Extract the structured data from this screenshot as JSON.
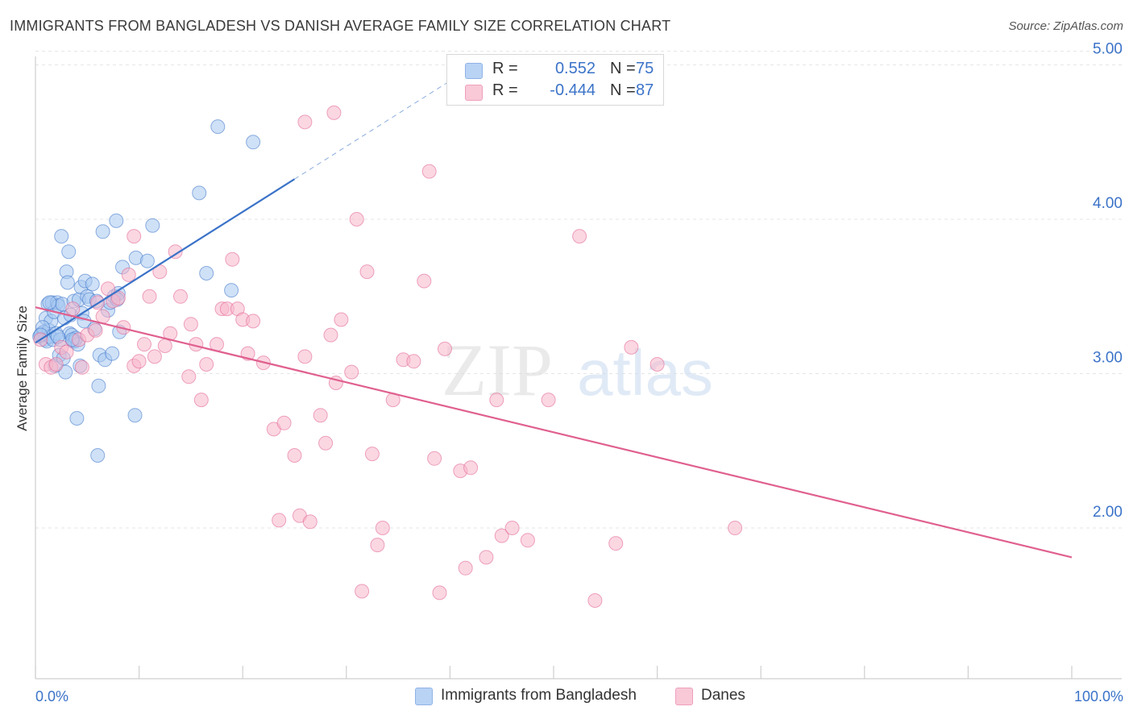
{
  "header": {
    "title": "IMMIGRANTS FROM BANGLADESH VS DANISH AVERAGE FAMILY SIZE CORRELATION CHART",
    "source": "Source: ZipAtlas.com"
  },
  "watermark": {
    "zip": "ZIP",
    "atlas": "atlas"
  },
  "legend": {
    "series1": {
      "r_label": "R =",
      "r_value": "0.552",
      "n_label": "N =",
      "n_value": "75",
      "color": "#a8c8f0"
    },
    "series2": {
      "r_label": "R =",
      "r_value": "-0.444",
      "n_label": "N =",
      "n_value": "87",
      "color": "#f7b7cb"
    }
  },
  "bottom_legend": {
    "series1_label": "Immigrants from Bangladesh",
    "series2_label": "Danes"
  },
  "chart_data": {
    "type": "scatter",
    "title": "IMMIGRANTS FROM BANGLADESH VS DANISH AVERAGE FAMILY SIZE CORRELATION CHART",
    "xlabel": "",
    "ylabel": "Average Family Size",
    "xlim": [
      0,
      100
    ],
    "ylim": [
      1.05,
      5.15
    ],
    "x_tick_labels": [
      "0.0%",
      "100.0%"
    ],
    "y_ticks": [
      2.0,
      3.0,
      4.0,
      5.0
    ],
    "y_tick_labels": [
      "2.00",
      "3.00",
      "4.00",
      "5.00"
    ],
    "grid": "horizontal dashed",
    "series": [
      {
        "name": "Immigrants from Bangladesh",
        "color": "#3b73c8",
        "fill": "#a8c8f0",
        "trend": {
          "x": [
            0,
            25.0
          ],
          "y": [
            3.2,
            4.26
          ],
          "dashed_extension_to_x": 42.0
        },
        "points": [
          [
            0.4,
            3.24
          ],
          [
            0.6,
            3.26
          ],
          [
            0.8,
            3.27
          ],
          [
            0.9,
            3.22
          ],
          [
            1.0,
            3.36
          ],
          [
            1.1,
            3.21
          ],
          [
            1.2,
            3.45
          ],
          [
            1.3,
            3.28
          ],
          [
            1.4,
            3.24
          ],
          [
            1.5,
            3.34
          ],
          [
            1.6,
            3.46
          ],
          [
            1.7,
            3.22
          ],
          [
            1.8,
            3.4
          ],
          [
            1.9,
            3.05
          ],
          [
            2.0,
            3.26
          ],
          [
            2.1,
            3.46
          ],
          [
            2.2,
            3.44
          ],
          [
            2.3,
            3.12
          ],
          [
            2.4,
            3.22
          ],
          [
            2.5,
            3.89
          ],
          [
            2.6,
            3.45
          ],
          [
            2.7,
            3.1
          ],
          [
            2.8,
            3.36
          ],
          [
            2.9,
            3.01
          ],
          [
            3.0,
            3.66
          ],
          [
            3.1,
            3.59
          ],
          [
            3.2,
            3.79
          ],
          [
            3.3,
            3.26
          ],
          [
            3.4,
            3.38
          ],
          [
            3.5,
            3.25
          ],
          [
            3.6,
            3.21
          ],
          [
            3.7,
            3.47
          ],
          [
            3.8,
            3.21
          ],
          [
            3.9,
            3.23
          ],
          [
            4.0,
            2.71
          ],
          [
            4.1,
            3.19
          ],
          [
            4.2,
            3.48
          ],
          [
            4.3,
            3.05
          ],
          [
            4.4,
            3.56
          ],
          [
            4.5,
            3.39
          ],
          [
            4.7,
            3.34
          ],
          [
            4.8,
            3.6
          ],
          [
            5.0,
            3.5
          ],
          [
            5.2,
            3.48
          ],
          [
            5.5,
            3.58
          ],
          [
            5.7,
            3.29
          ],
          [
            6.0,
            2.47
          ],
          [
            6.1,
            2.92
          ],
          [
            6.2,
            3.12
          ],
          [
            6.5,
            3.92
          ],
          [
            6.7,
            3.09
          ],
          [
            7.0,
            3.41
          ],
          [
            7.2,
            3.46
          ],
          [
            7.4,
            3.13
          ],
          [
            7.6,
            3.5
          ],
          [
            7.8,
            3.99
          ],
          [
            8.0,
            3.52
          ],
          [
            8.1,
            3.27
          ],
          [
            8.4,
            3.69
          ],
          [
            9.6,
            2.73
          ],
          [
            9.7,
            3.75
          ],
          [
            10.8,
            3.73
          ],
          [
            11.3,
            3.96
          ],
          [
            15.8,
            4.17
          ],
          [
            16.5,
            3.65
          ],
          [
            17.6,
            4.6
          ],
          [
            18.9,
            3.54
          ],
          [
            21.0,
            4.5
          ],
          [
            0.7,
            3.3
          ],
          [
            1.35,
            3.46
          ],
          [
            2.15,
            3.24
          ],
          [
            3.55,
            3.22
          ],
          [
            5.9,
            3.47
          ],
          [
            7.9,
            3.48
          ],
          [
            0.5,
            3.25
          ]
        ]
      },
      {
        "name": "Danes",
        "color": "#e0608f",
        "fill": "#f7b7cb",
        "trend": {
          "x": [
            0,
            100
          ],
          "y": [
            3.43,
            1.81
          ]
        },
        "points": [
          [
            0.5,
            3.22
          ],
          [
            1.0,
            3.06
          ],
          [
            1.5,
            3.04
          ],
          [
            2.0,
            3.06
          ],
          [
            2.5,
            3.17
          ],
          [
            3.0,
            3.14
          ],
          [
            3.6,
            3.42
          ],
          [
            4.2,
            3.22
          ],
          [
            4.5,
            3.04
          ],
          [
            5.0,
            3.25
          ],
          [
            5.8,
            3.28
          ],
          [
            6.0,
            3.46
          ],
          [
            6.5,
            3.37
          ],
          [
            7.0,
            3.55
          ],
          [
            7.5,
            3.47
          ],
          [
            8.0,
            3.49
          ],
          [
            8.5,
            3.3
          ],
          [
            9.0,
            3.64
          ],
          [
            9.5,
            3.05
          ],
          [
            10.0,
            3.08
          ],
          [
            10.5,
            3.19
          ],
          [
            11.0,
            3.5
          ],
          [
            11.5,
            3.11
          ],
          [
            12.0,
            3.66
          ],
          [
            12.5,
            3.18
          ],
          [
            13.0,
            3.26
          ],
          [
            13.5,
            3.79
          ],
          [
            14.0,
            3.5
          ],
          [
            14.8,
            2.98
          ],
          [
            15.0,
            3.32
          ],
          [
            15.5,
            3.19
          ],
          [
            16.0,
            2.83
          ],
          [
            16.5,
            3.06
          ],
          [
            17.5,
            3.19
          ],
          [
            18.0,
            3.42
          ],
          [
            18.5,
            3.42
          ],
          [
            19.0,
            3.74
          ],
          [
            19.5,
            3.42
          ],
          [
            20.0,
            3.35
          ],
          [
            20.5,
            3.13
          ],
          [
            21.0,
            3.34
          ],
          [
            22.0,
            3.07
          ],
          [
            23.0,
            2.64
          ],
          [
            23.5,
            2.05
          ],
          [
            24.0,
            2.68
          ],
          [
            25.0,
            2.47
          ],
          [
            25.5,
            2.08
          ],
          [
            26.0,
            3.11
          ],
          [
            26.5,
            2.04
          ],
          [
            27.5,
            2.73
          ],
          [
            28.0,
            2.55
          ],
          [
            28.5,
            3.25
          ],
          [
            29.5,
            3.35
          ],
          [
            29.0,
            2.94
          ],
          [
            30.5,
            3.01
          ],
          [
            31.0,
            4.0
          ],
          [
            31.5,
            1.59
          ],
          [
            32.0,
            3.66
          ],
          [
            32.5,
            2.48
          ],
          [
            33.0,
            1.89
          ],
          [
            33.5,
            2.0
          ],
          [
            34.5,
            2.83
          ],
          [
            35.5,
            3.09
          ],
          [
            36.5,
            3.08
          ],
          [
            37.5,
            3.6
          ],
          [
            38.0,
            4.31
          ],
          [
            38.5,
            2.45
          ],
          [
            39.0,
            1.58
          ],
          [
            39.5,
            3.16
          ],
          [
            41.0,
            2.37
          ],
          [
            41.5,
            1.74
          ],
          [
            42.0,
            2.39
          ],
          [
            43.5,
            1.81
          ],
          [
            44.5,
            2.83
          ],
          [
            45.0,
            1.95
          ],
          [
            46.0,
            2.0
          ],
          [
            47.5,
            1.92
          ],
          [
            49.5,
            2.83
          ],
          [
            52.5,
            3.89
          ],
          [
            54.0,
            1.53
          ],
          [
            56.0,
            1.9
          ],
          [
            57.5,
            3.17
          ],
          [
            60.0,
            3.06
          ],
          [
            67.5,
            2.0
          ],
          [
            26.0,
            4.63
          ],
          [
            28.8,
            4.69
          ],
          [
            9.5,
            3.89
          ]
        ]
      }
    ]
  }
}
